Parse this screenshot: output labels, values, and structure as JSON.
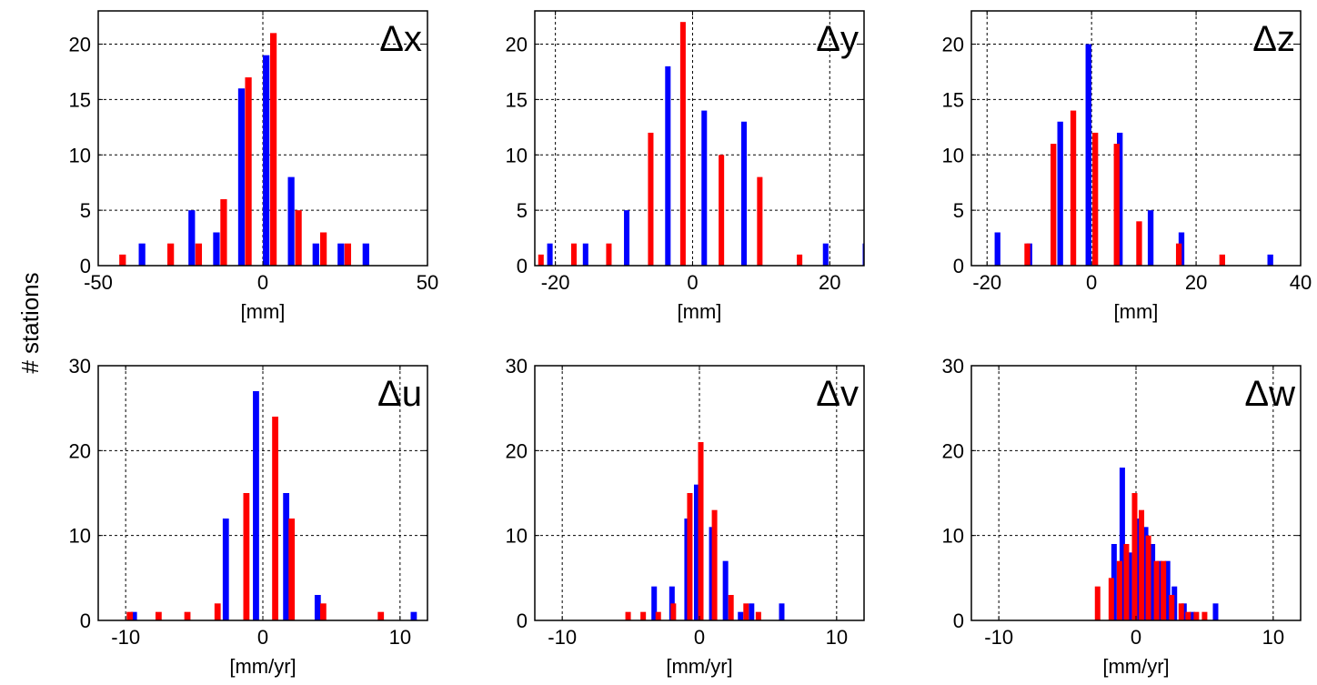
{
  "figure": {
    "ylabel": "# stations"
  },
  "colors": {
    "series_a": "#0000ff",
    "series_b": "#ff0000"
  },
  "chart_data": [
    {
      "type": "bar",
      "annotation": "Δx",
      "xlabel": "[mm]",
      "xlim": [
        -50,
        50
      ],
      "ylim": [
        0,
        23
      ],
      "xticks": [
        -50,
        0,
        50
      ],
      "yticks": [
        0,
        5,
        10,
        15,
        20
      ],
      "bar_width": 2.0,
      "grid": true,
      "series": [
        {
          "color": "#0000ff",
          "x": [
            -36.7,
            -21.6,
            -14.1,
            -6.5,
            1.0,
            8.6,
            16.1,
            23.7,
            31.3
          ],
          "values": [
            2,
            5,
            3,
            16,
            19,
            8,
            2,
            2,
            2
          ]
        },
        {
          "color": "#ff0000",
          "x": [
            -42.6,
            -28.0,
            -19.5,
            -11.9,
            -4.4,
            3.2,
            10.8,
            18.4,
            25.8
          ],
          "values": [
            1,
            2,
            2,
            6,
            17,
            21,
            5,
            3,
            2
          ]
        }
      ]
    },
    {
      "type": "bar",
      "annotation": "Δy",
      "xlabel": "[mm]",
      "xlim": [
        -23,
        25
      ],
      "ylim": [
        0,
        23
      ],
      "xticks": [
        -20,
        0,
        20
      ],
      "yticks": [
        0,
        5,
        10,
        15,
        20
      ],
      "bar_width": 0.8,
      "grid": true,
      "series": [
        {
          "color": "#0000ff",
          "x": [
            -20.8,
            -15.6,
            -9.6,
            -3.6,
            1.7,
            7.5,
            19.4,
            25.2
          ],
          "values": [
            2,
            2,
            5,
            18,
            14,
            13,
            2,
            2
          ]
        },
        {
          "color": "#ff0000",
          "x": [
            -22.1,
            -17.3,
            -12.2,
            -6.1,
            -1.4,
            4.2,
            9.8,
            15.6
          ],
          "values": [
            1,
            2,
            2,
            12,
            22,
            10,
            8,
            1
          ]
        }
      ]
    },
    {
      "type": "bar",
      "annotation": "Δz",
      "xlabel": "[mm]",
      "xlim": [
        -23,
        40
      ],
      "ylim": [
        0,
        23
      ],
      "xticks": [
        -20,
        0,
        20,
        40
      ],
      "yticks": [
        0,
        5,
        10,
        15,
        20
      ],
      "bar_width": 1.1,
      "grid": true,
      "series": [
        {
          "color": "#0000ff",
          "x": [
            -18.0,
            -11.9,
            -6.0,
            -0.6,
            5.4,
            11.3,
            17.2,
            34.2
          ],
          "values": [
            3,
            2,
            13,
            20,
            12,
            5,
            3,
            1
          ]
        },
        {
          "color": "#ff0000",
          "x": [
            -12.3,
            -7.3,
            -3.5,
            0.7,
            4.8,
            9.1,
            16.7,
            25.0
          ],
          "values": [
            2,
            11,
            14,
            12,
            11,
            4,
            2,
            1
          ]
        }
      ]
    },
    {
      "type": "bar",
      "annotation": "Δu",
      "xlabel": "[mm/yr]",
      "xlim": [
        -12,
        12
      ],
      "ylim": [
        0,
        30
      ],
      "xticks": [
        -10,
        0,
        10
      ],
      "yticks": [
        0,
        10,
        20,
        30
      ],
      "bar_width": 0.45,
      "grid": true,
      "series": [
        {
          "color": "#0000ff",
          "x": [
            -9.4,
            -2.7,
            -0.5,
            1.7,
            4.0,
            11.0
          ],
          "values": [
            1,
            12,
            27,
            15,
            3,
            1
          ]
        },
        {
          "color": "#ff0000",
          "x": [
            -9.7,
            -7.6,
            -5.5,
            -3.3,
            -1.2,
            0.9,
            2.1,
            4.4,
            8.6
          ],
          "values": [
            1,
            1,
            1,
            2,
            15,
            24,
            12,
            2,
            1
          ]
        }
      ]
    },
    {
      "type": "bar",
      "annotation": "Δv",
      "xlabel": "[mm/yr]",
      "xlim": [
        -12,
        12
      ],
      "ylim": [
        0,
        30
      ],
      "xticks": [
        -10,
        0,
        10
      ],
      "yticks": [
        0,
        10,
        20,
        30
      ],
      "bar_width": 0.3,
      "grid": true,
      "series": [
        {
          "color": "#0000ff",
          "x": [
            -3.3,
            -2.0,
            -0.9,
            -0.2,
            0.9,
            1.9,
            3.0,
            3.8,
            6.0
          ],
          "values": [
            4,
            4,
            12,
            16,
            11,
            7,
            1,
            2,
            2
          ]
        },
        {
          "color": "#ff0000",
          "x": [
            -5.2,
            -4.1,
            -3.0,
            -1.9,
            -0.7,
            0.1,
            1.1,
            2.3,
            3.4,
            4.3
          ],
          "values": [
            1,
            1,
            1,
            2,
            15,
            21,
            13,
            3,
            2,
            1
          ]
        }
      ]
    },
    {
      "type": "bar",
      "annotation": "Δw",
      "xlabel": "[mm/yr]",
      "xlim": [
        -12,
        12
      ],
      "ylim": [
        0,
        30
      ],
      "xticks": [
        -10,
        0,
        10
      ],
      "yticks": [
        0,
        10,
        20,
        30
      ],
      "bar_width": 0.3,
      "grid": true,
      "series": [
        {
          "color": "#0000ff",
          "x": [
            -1.6,
            -1.0,
            -0.5,
            0.2,
            0.7,
            1.2,
            1.7,
            2.3,
            2.8,
            3.5,
            4.1,
            5.8
          ],
          "values": [
            9,
            18,
            8,
            12,
            11,
            9,
            7,
            7,
            4,
            2,
            1,
            2
          ]
        },
        {
          "color": "#ff0000",
          "x": [
            -2.8,
            -1.8,
            -1.2,
            -0.7,
            -0.1,
            0.4,
            0.9,
            1.5,
            2.0,
            2.6,
            3.3,
            3.8,
            4.4,
            5.0
          ],
          "values": [
            4,
            5,
            7,
            9,
            15,
            13,
            10,
            7,
            7,
            3,
            2,
            1,
            1,
            1
          ]
        }
      ]
    }
  ]
}
